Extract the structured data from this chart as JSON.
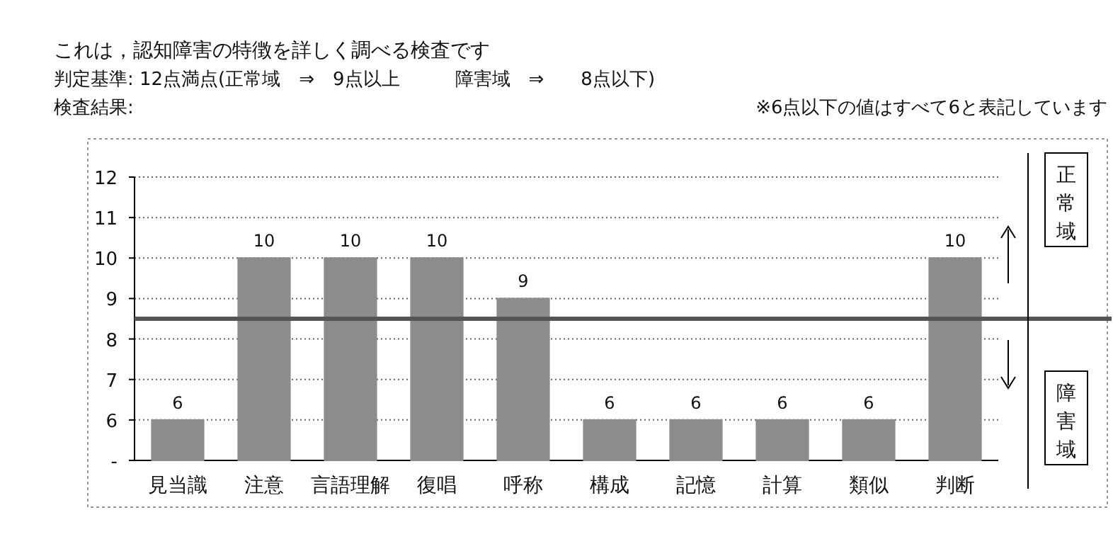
{
  "chart_data": {
    "type": "bar",
    "title": "これは，認知障害の特徴を詳しく調べる検査です",
    "subtitle": "判定基準:  12点満点(正常域　⇒　9点以上　　　障害域　⇒　　8点以下)",
    "annotations": [
      "検査結果:",
      "※6点以下の値はすべて6と表記しています",
      "正常域",
      "障害域"
    ],
    "categories": [
      "見当識",
      "注意",
      "言語理解",
      "復唱",
      "呼称",
      "構成",
      "記憶",
      "計算",
      "類似",
      "判断"
    ],
    "values": [
      6,
      10,
      10,
      10,
      9,
      6,
      6,
      6,
      6,
      10
    ],
    "color": "#8c8c8c",
    "data_labels": true,
    "ylim": [
      5,
      12
    ],
    "yticks": [
      {
        "value": 5,
        "label": "-"
      },
      6,
      7,
      8,
      9,
      10,
      11,
      12
    ],
    "grid": "y",
    "ref_lines": [
      {
        "axis": "y",
        "value": 8.5,
        "color": "#555555"
      }
    ]
  }
}
